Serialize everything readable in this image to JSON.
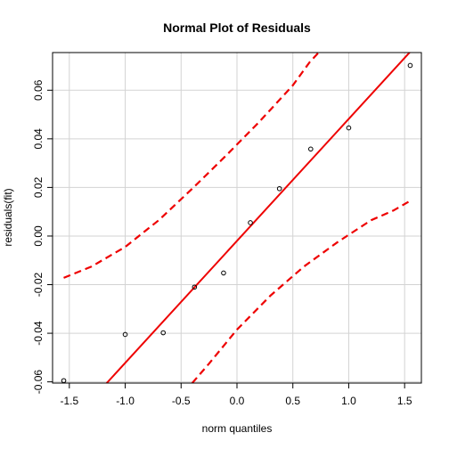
{
  "chart_data": {
    "type": "scatter",
    "title": "Normal Plot of Residuals",
    "xlabel": "norm quantiles",
    "ylabel": "residuals(fit)",
    "xlim": [
      -1.65,
      1.65
    ],
    "ylim": [
      -0.0605,
      0.0755
    ],
    "x_ticks": [
      -1.5,
      -1.0,
      -0.5,
      0.0,
      0.5,
      1.0,
      1.5
    ],
    "x_tick_labels": [
      "-1.5",
      "-1.0",
      "-0.5",
      "0.0",
      "0.5",
      "1.0",
      "1.5"
    ],
    "y_ticks": [
      -0.06,
      -0.04,
      -0.02,
      0.0,
      0.02,
      0.04,
      0.06
    ],
    "y_tick_labels": [
      "-0.06",
      "-0.04",
      "-0.02",
      "0.00",
      "0.02",
      "0.04",
      "0.06"
    ],
    "grid": true,
    "points": [
      {
        "x": -1.55,
        "y": -0.0595
      },
      {
        "x": -1.0,
        "y": -0.0405
      },
      {
        "x": -0.66,
        "y": -0.0398
      },
      {
        "x": -0.38,
        "y": -0.021
      },
      {
        "x": -0.12,
        "y": -0.0152
      },
      {
        "x": 0.12,
        "y": 0.0055
      },
      {
        "x": 0.38,
        "y": 0.0195
      },
      {
        "x": 0.66,
        "y": 0.0358
      },
      {
        "x": 1.0,
        "y": 0.0445
      },
      {
        "x": 1.55,
        "y": 0.0702
      }
    ],
    "reference_line": {
      "intercept": -0.002,
      "slope": 0.0502
    },
    "envelope_upper": [
      {
        "x": -1.55,
        "y": -0.0172
      },
      {
        "x": -1.3,
        "y": -0.0125
      },
      {
        "x": -1.0,
        "y": -0.0045
      },
      {
        "x": -0.7,
        "y": 0.0065
      },
      {
        "x": -0.4,
        "y": 0.0195
      },
      {
        "x": -0.1,
        "y": 0.033
      },
      {
        "x": 0.2,
        "y": 0.047
      },
      {
        "x": 0.5,
        "y": 0.062
      },
      {
        "x": 0.65,
        "y": 0.0715
      },
      {
        "x": 0.73,
        "y": 0.0755
      }
    ],
    "envelope_lower": [
      {
        "x": -0.4,
        "y": -0.0605
      },
      {
        "x": -0.25,
        "y": -0.0525
      },
      {
        "x": 0.0,
        "y": -0.0385
      },
      {
        "x": 0.3,
        "y": -0.0245
      },
      {
        "x": 0.6,
        "y": -0.0125
      },
      {
        "x": 0.9,
        "y": -0.0025
      },
      {
        "x": 1.2,
        "y": 0.0065
      },
      {
        "x": 1.4,
        "y": 0.0105
      },
      {
        "x": 1.55,
        "y": 0.0145
      }
    ],
    "colors": {
      "points": "#000000",
      "reference_line": "#ee0000",
      "envelope": "#ee0000",
      "grid": "#d3d3d3",
      "axes": "#000000"
    }
  }
}
